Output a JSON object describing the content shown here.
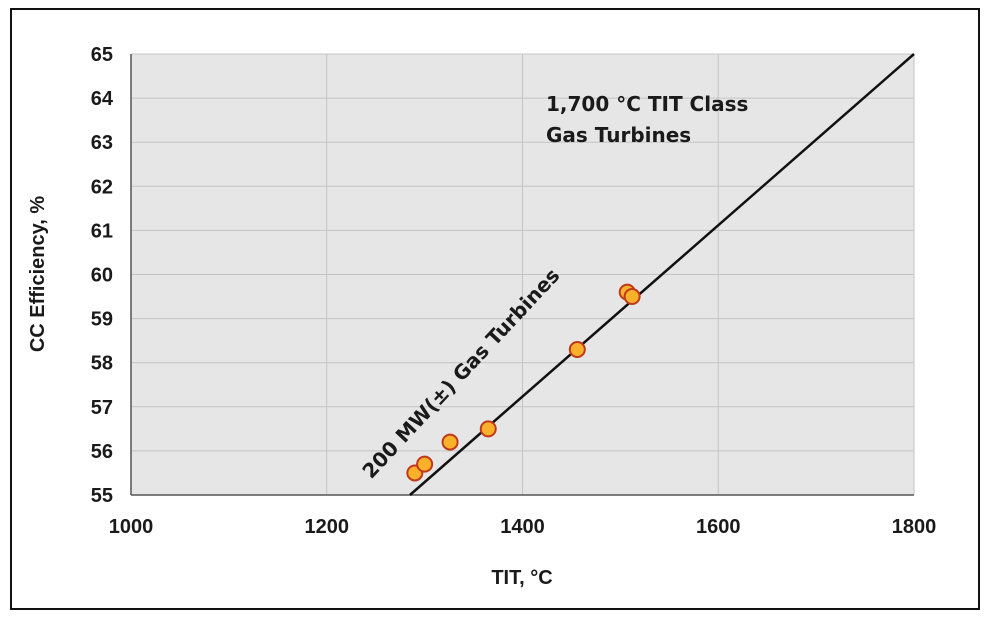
{
  "chart_data": {
    "type": "scatter",
    "title": "",
    "xlabel": "TIT, °C",
    "ylabel": "CC Efficiency, %",
    "xlim": [
      1000,
      1800
    ],
    "ylim": [
      55,
      65
    ],
    "xticks": [
      1000,
      1200,
      1400,
      1600,
      1800
    ],
    "yticks": [
      55,
      56,
      57,
      58,
      59,
      60,
      61,
      62,
      63,
      64,
      65
    ],
    "grid": true,
    "series": [
      {
        "name": "Gas turbines",
        "x": [
          1290,
          1300,
          1326,
          1365,
          1456,
          1507,
          1512
        ],
        "y": [
          55.5,
          55.7,
          56.2,
          56.5,
          58.3,
          59.6,
          59.5
        ]
      }
    ],
    "trend_line": {
      "x": [
        1285,
        1800
      ],
      "y": [
        55.0,
        65.0
      ]
    },
    "annotations": [
      {
        "lines": [
          "1,700 °C TIT Class",
          "Gas Turbines"
        ]
      },
      {
        "lines": [
          "200 MW(±) Gas Turbines"
        ]
      }
    ],
    "colors": {
      "plot_bg": "#e6e6e6",
      "grid": "#c4c4c4",
      "marker_fill": "#f9b02a",
      "marker_edge": "#c0391b",
      "line": "#111111"
    }
  }
}
